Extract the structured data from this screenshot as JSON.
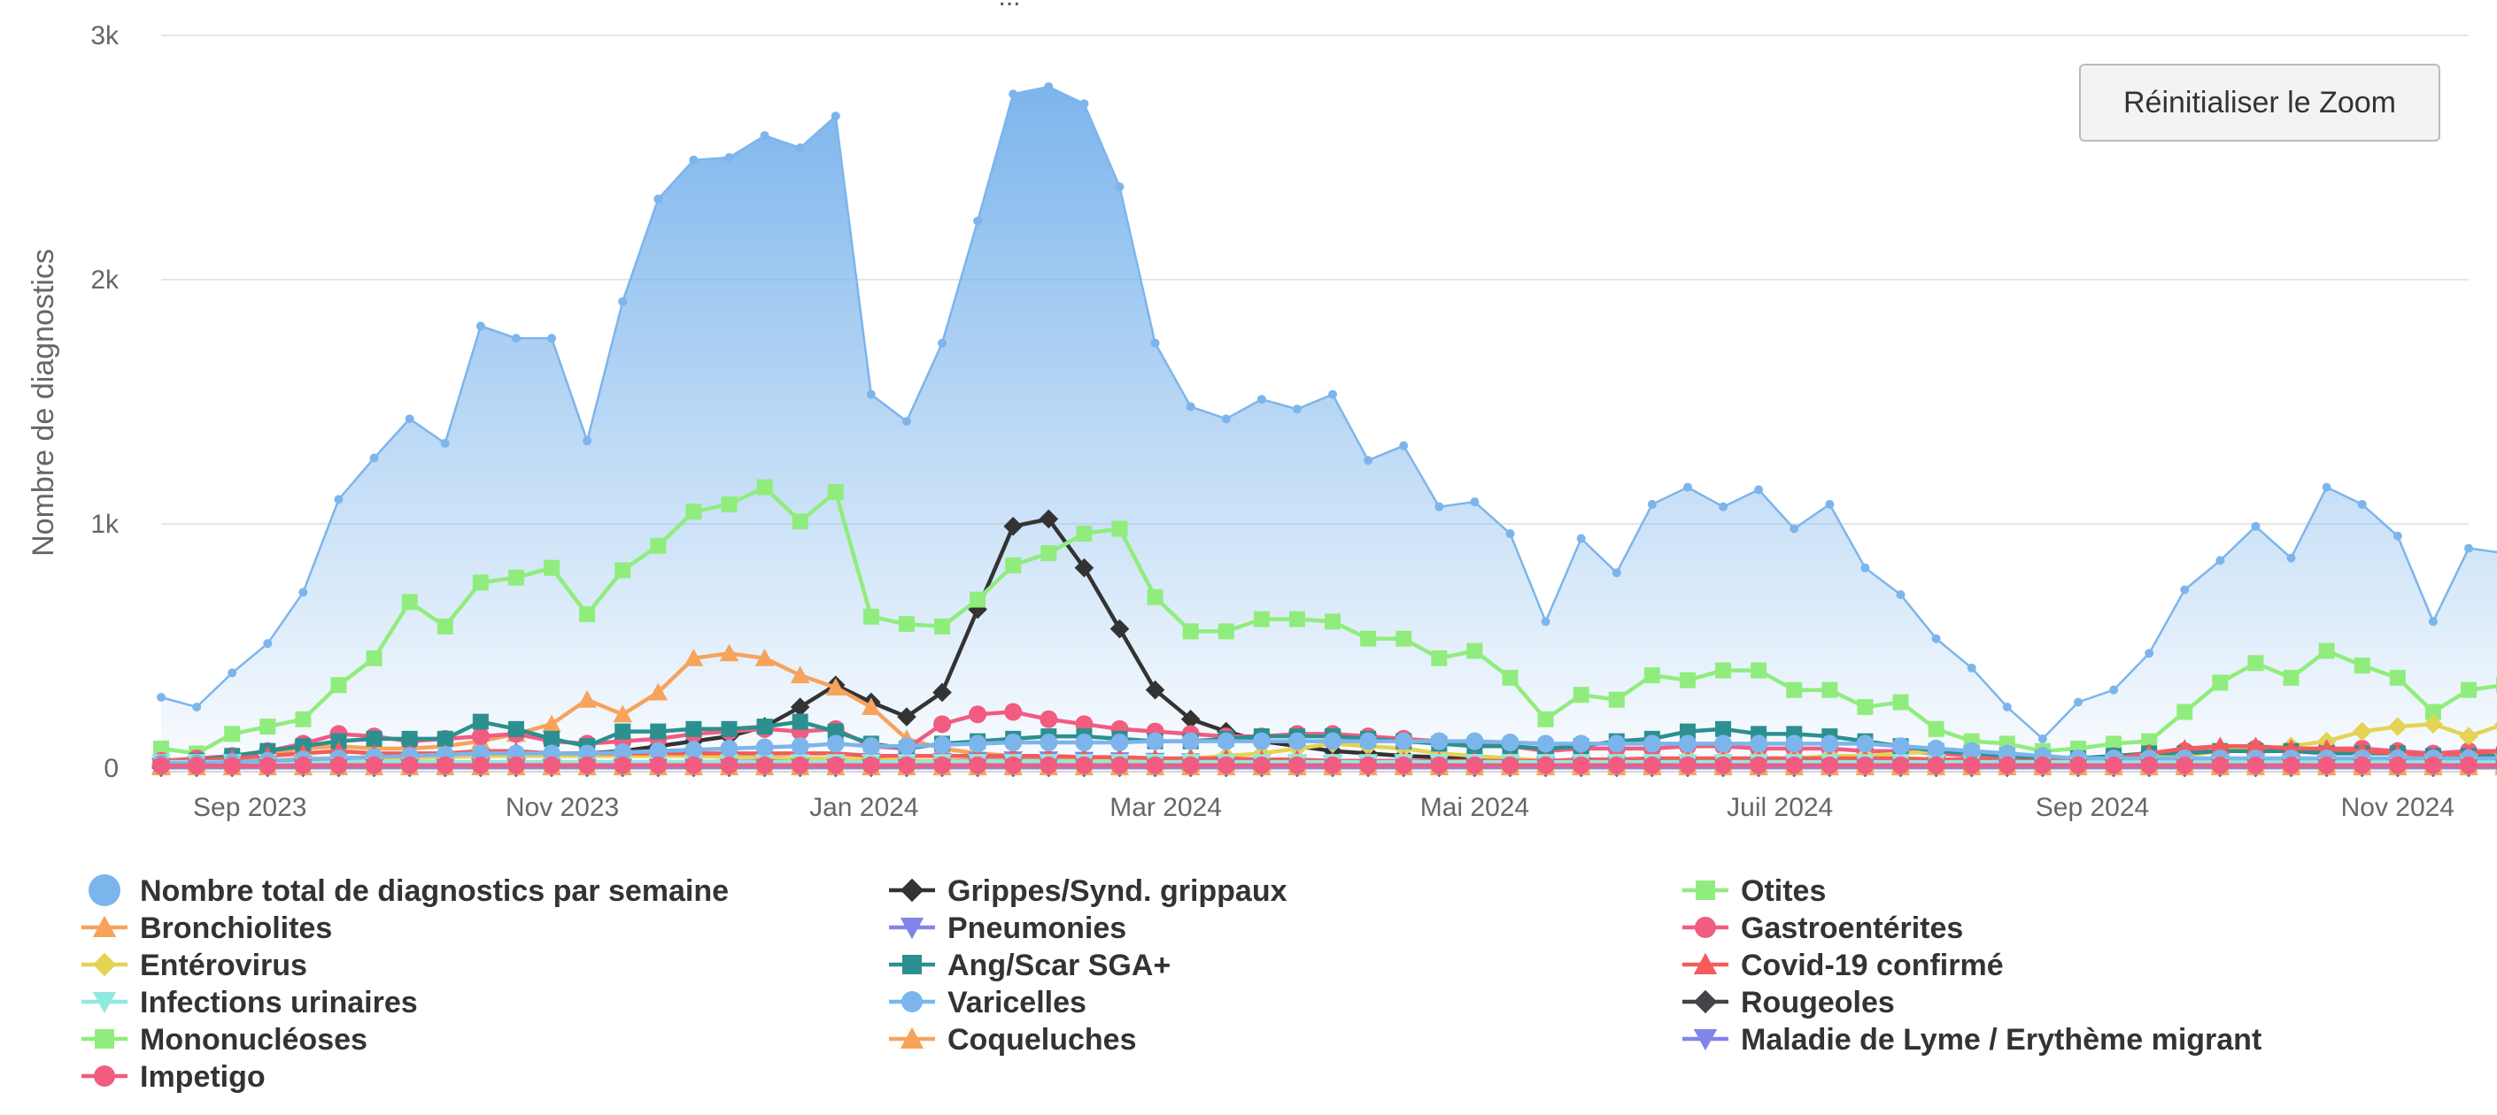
{
  "title_fragment": "...",
  "reset_zoom_label": "Réinitialiser le Zoom",
  "chart_data": {
    "type": "line",
    "ylabel": "Nombre de diagnostics",
    "ylim": [
      0,
      3000
    ],
    "yticks": [
      0,
      1000,
      2000,
      3000
    ],
    "ytick_labels": [
      "0",
      "1k",
      "2k",
      "3k"
    ],
    "x_start_week": 0,
    "x_end_week": 65,
    "xticks": [
      {
        "label": "Sep 2023",
        "week": 2.5
      },
      {
        "label": "Nov 2023",
        "week": 11.3
      },
      {
        "label": "Jan 2024",
        "week": 19.8
      },
      {
        "label": "Mar 2024",
        "week": 28.3
      },
      {
        "label": "Mai 2024",
        "week": 37.0
      },
      {
        "label": "Juil 2024",
        "week": 45.6
      },
      {
        "label": "Sep 2024",
        "week": 54.4
      },
      {
        "label": "Nov 2024",
        "week": 63.0
      }
    ],
    "series": [
      {
        "name": "Nombre total de diagnostics par semaine",
        "color": "#7cb5ec",
        "marker": "circle",
        "kind": "area",
        "values": [
          290,
          250,
          390,
          510,
          720,
          1100,
          1270,
          1430,
          1330,
          1810,
          1760,
          1760,
          1340,
          1910,
          2330,
          2490,
          2500,
          2590,
          2540,
          2670,
          1530,
          1420,
          1740,
          2240,
          2760,
          2790,
          2720,
          2380,
          1740,
          1480,
          1430,
          1510,
          1470,
          1530,
          1260,
          1320,
          1070,
          1090,
          960,
          600,
          940,
          800,
          1080,
          1150,
          1070,
          1140,
          980,
          1080,
          820,
          710,
          530,
          410,
          250,
          120,
          270,
          320,
          470,
          730,
          850,
          990,
          860,
          1150,
          1080,
          950,
          600,
          900,
          880
        ]
      },
      {
        "name": "Grippes/Synd. grippaux",
        "color": "#333333",
        "marker": "diamond",
        "values": [
          10,
          15,
          20,
          25,
          30,
          40,
          45,
          50,
          50,
          55,
          60,
          60,
          60,
          70,
          90,
          110,
          130,
          170,
          250,
          340,
          270,
          210,
          310,
          650,
          990,
          1020,
          820,
          570,
          320,
          200,
          150,
          110,
          90,
          70,
          60,
          50,
          45,
          40,
          35,
          30,
          25,
          25,
          20,
          20,
          20,
          20,
          20,
          20,
          20,
          20,
          20,
          20,
          20,
          20,
          20,
          20,
          20,
          20,
          20,
          20,
          20,
          20,
          20,
          20,
          20,
          20,
          20
        ]
      },
      {
        "name": "Otites",
        "color": "#90ed7d",
        "marker": "square",
        "values": [
          80,
          60,
          140,
          170,
          200,
          340,
          450,
          680,
          580,
          760,
          780,
          820,
          630,
          810,
          910,
          1050,
          1080,
          1150,
          1010,
          1130,
          620,
          590,
          580,
          690,
          830,
          880,
          960,
          980,
          700,
          560,
          560,
          610,
          610,
          600,
          530,
          530,
          450,
          480,
          370,
          200,
          300,
          280,
          380,
          360,
          400,
          400,
          320,
          320,
          250,
          270,
          160,
          110,
          100,
          70,
          80,
          100,
          110,
          230,
          350,
          430,
          370,
          480,
          420,
          370,
          230,
          320,
          340
        ]
      },
      {
        "name": "Bronchiolites",
        "color": "#f7a35c",
        "marker": "triangle",
        "values": [
          10,
          20,
          40,
          60,
          80,
          90,
          80,
          80,
          90,
          110,
          140,
          180,
          280,
          220,
          310,
          450,
          470,
          450,
          380,
          330,
          250,
          120,
          80,
          60,
          50,
          40,
          30,
          30,
          25,
          20,
          20,
          20,
          15,
          15,
          15,
          15,
          15,
          15,
          15,
          15,
          15,
          15,
          15,
          15,
          15,
          15,
          15,
          15,
          15,
          15,
          15,
          15,
          15,
          15,
          15,
          15,
          15,
          15,
          15,
          15,
          15,
          15,
          15,
          15,
          15,
          15,
          15
        ]
      },
      {
        "name": "Pneumonies",
        "color": "#8085e9",
        "marker": "triangle-down",
        "values": [
          10,
          10,
          10,
          10,
          12,
          14,
          15,
          15,
          16,
          18,
          20,
          20,
          20,
          22,
          24,
          25,
          26,
          28,
          30,
          32,
          30,
          28,
          30,
          34,
          36,
          36,
          34,
          32,
          30,
          28,
          26,
          24,
          22,
          20,
          20,
          18,
          18,
          18,
          16,
          15,
          15,
          15,
          15,
          15,
          15,
          15,
          15,
          15,
          15,
          15,
          15,
          15,
          14,
          12,
          15,
          15,
          16,
          18,
          20,
          22,
          22,
          24,
          24,
          22,
          20,
          22,
          22
        ]
      },
      {
        "name": "Gastroentérites",
        "color": "#f15c80",
        "marker": "circle",
        "values": [
          30,
          40,
          50,
          70,
          100,
          140,
          130,
          110,
          120,
          130,
          140,
          110,
          100,
          110,
          120,
          140,
          150,
          160,
          150,
          160,
          90,
          80,
          180,
          220,
          230,
          200,
          180,
          160,
          150,
          140,
          130,
          130,
          140,
          140,
          130,
          120,
          110,
          100,
          90,
          70,
          80,
          80,
          80,
          90,
          90,
          80,
          80,
          80,
          70,
          70,
          60,
          50,
          40,
          30,
          40,
          50,
          60,
          70,
          70,
          80,
          70,
          80,
          80,
          70,
          60,
          70,
          70
        ]
      },
      {
        "name": "Entérovirus",
        "color": "#e4d354",
        "marker": "diamond",
        "values": [
          20,
          20,
          30,
          30,
          40,
          40,
          40,
          40,
          45,
          50,
          50,
          50,
          50,
          50,
          50,
          50,
          45,
          45,
          40,
          40,
          35,
          30,
          30,
          30,
          30,
          30,
          30,
          30,
          30,
          40,
          50,
          60,
          80,
          100,
          90,
          80,
          60,
          50,
          40,
          30,
          30,
          30,
          30,
          40,
          40,
          40,
          40,
          50,
          50,
          60,
          70,
          60,
          50,
          40,
          30,
          30,
          40,
          50,
          70,
          80,
          90,
          110,
          150,
          170,
          180,
          130,
          180
        ]
      },
      {
        "name": "Ang/Scar SGA+",
        "color": "#2b908f",
        "marker": "square",
        "values": [
          20,
          30,
          50,
          70,
          90,
          110,
          120,
          120,
          120,
          190,
          160,
          120,
          90,
          150,
          150,
          160,
          160,
          170,
          190,
          150,
          100,
          80,
          100,
          110,
          120,
          130,
          130,
          120,
          110,
          110,
          120,
          130,
          130,
          130,
          120,
          110,
          100,
          90,
          90,
          80,
          90,
          110,
          120,
          150,
          160,
          140,
          140,
          130,
          110,
          90,
          70,
          60,
          50,
          40,
          40,
          50,
          60,
          60,
          70,
          70,
          70,
          60,
          60,
          60,
          50,
          50,
          50
        ]
      },
      {
        "name": "Covid-19 confirmé",
        "color": "#f45b5b",
        "marker": "triangle",
        "values": [
          30,
          30,
          40,
          50,
          60,
          70,
          60,
          60,
          60,
          70,
          70,
          60,
          60,
          60,
          60,
          60,
          60,
          60,
          60,
          60,
          50,
          50,
          50,
          50,
          50,
          50,
          45,
          45,
          40,
          40,
          40,
          35,
          35,
          30,
          30,
          30,
          30,
          30,
          30,
          30,
          35,
          35,
          40,
          40,
          40,
          40,
          40,
          40,
          40,
          40,
          35,
          35,
          30,
          30,
          30,
          40,
          60,
          80,
          90,
          90,
          80,
          80,
          70,
          60,
          50,
          60,
          70
        ]
      },
      {
        "name": "Infections urinaires",
        "color": "#91e8e1",
        "marker": "triangle-down",
        "values": [
          25,
          25,
          25,
          25,
          25,
          25,
          25,
          25,
          25,
          25,
          25,
          25,
          25,
          25,
          25,
          25,
          25,
          25,
          25,
          25,
          25,
          25,
          25,
          25,
          25,
          25,
          25,
          25,
          25,
          25,
          25,
          25,
          25,
          25,
          25,
          25,
          25,
          25,
          25,
          25,
          25,
          25,
          25,
          25,
          25,
          25,
          25,
          25,
          25,
          25,
          25,
          25,
          25,
          25,
          25,
          25,
          25,
          25,
          25,
          25,
          25,
          25,
          25,
          25,
          25,
          25,
          25
        ]
      },
      {
        "name": "Varicelles",
        "color": "#7cb5ec",
        "marker": "circle",
        "values": [
          20,
          20,
          25,
          30,
          35,
          40,
          45,
          50,
          55,
          60,
          60,
          60,
          60,
          65,
          70,
          75,
          80,
          85,
          90,
          100,
          90,
          90,
          95,
          100,
          105,
          105,
          105,
          105,
          110,
          110,
          110,
          110,
          110,
          110,
          110,
          110,
          110,
          110,
          105,
          100,
          100,
          100,
          100,
          100,
          100,
          100,
          100,
          100,
          100,
          90,
          80,
          70,
          60,
          50,
          40,
          40,
          40,
          40,
          40,
          40,
          40,
          40,
          40,
          40,
          40,
          40,
          40
        ]
      },
      {
        "name": "Rougeoles",
        "color": "#434348",
        "marker": "diamond",
        "values": [
          2,
          2,
          2,
          2,
          2,
          2,
          2,
          2,
          2,
          2,
          2,
          2,
          2,
          2,
          2,
          2,
          2,
          2,
          2,
          2,
          2,
          2,
          2,
          2,
          2,
          2,
          2,
          2,
          2,
          2,
          2,
          2,
          2,
          2,
          2,
          2,
          2,
          2,
          2,
          2,
          2,
          2,
          2,
          2,
          2,
          2,
          2,
          2,
          2,
          2,
          2,
          2,
          2,
          2,
          2,
          2,
          2,
          2,
          2,
          2,
          2,
          2,
          2,
          2,
          2,
          2,
          2
        ]
      },
      {
        "name": "Mononucléoses",
        "color": "#90ed7d",
        "marker": "square",
        "values": [
          10,
          10,
          10,
          10,
          10,
          10,
          10,
          10,
          10,
          10,
          10,
          10,
          10,
          10,
          10,
          10,
          10,
          10,
          10,
          10,
          10,
          10,
          10,
          10,
          10,
          10,
          10,
          10,
          10,
          10,
          10,
          10,
          10,
          10,
          10,
          10,
          10,
          10,
          10,
          10,
          10,
          10,
          10,
          10,
          10,
          10,
          10,
          10,
          10,
          10,
          10,
          10,
          10,
          10,
          10,
          10,
          10,
          10,
          10,
          10,
          10,
          10,
          10,
          10,
          10,
          10,
          10
        ]
      },
      {
        "name": "Coqueluches",
        "color": "#f7a35c",
        "marker": "triangle",
        "values": [
          3,
          3,
          3,
          3,
          3,
          3,
          3,
          3,
          3,
          3,
          3,
          3,
          3,
          3,
          3,
          3,
          3,
          3,
          3,
          3,
          3,
          3,
          3,
          3,
          3,
          3,
          3,
          3,
          3,
          3,
          3,
          3,
          3,
          3,
          3,
          3,
          3,
          3,
          3,
          3,
          3,
          3,
          3,
          3,
          3,
          3,
          3,
          3,
          3,
          3,
          3,
          3,
          3,
          3,
          3,
          3,
          3,
          3,
          3,
          3,
          3,
          3,
          3,
          3,
          3,
          3,
          3
        ]
      },
      {
        "name": "Maladie de Lyme / Erythème migrant",
        "color": "#8085e9",
        "marker": "triangle-down",
        "values": [
          5,
          5,
          5,
          5,
          5,
          5,
          5,
          5,
          5,
          5,
          5,
          5,
          5,
          5,
          5,
          5,
          5,
          5,
          5,
          5,
          5,
          5,
          5,
          5,
          5,
          5,
          5,
          5,
          5,
          5,
          5,
          5,
          5,
          5,
          5,
          5,
          5,
          5,
          5,
          5,
          5,
          5,
          5,
          5,
          5,
          5,
          5,
          5,
          5,
          5,
          5,
          5,
          5,
          5,
          5,
          5,
          5,
          5,
          5,
          5,
          5,
          5,
          5,
          5,
          5,
          5,
          5
        ]
      },
      {
        "name": "Impetigo",
        "color": "#f15c80",
        "marker": "circle",
        "values": [
          10,
          10,
          10,
          10,
          12,
          12,
          12,
          12,
          12,
          12,
          12,
          12,
          12,
          12,
          12,
          12,
          12,
          12,
          12,
          12,
          12,
          12,
          12,
          12,
          12,
          12,
          12,
          12,
          12,
          12,
          12,
          12,
          12,
          12,
          12,
          12,
          12,
          12,
          12,
          12,
          12,
          12,
          12,
          12,
          12,
          12,
          12,
          12,
          12,
          12,
          12,
          12,
          12,
          12,
          12,
          12,
          12,
          12,
          12,
          12,
          12,
          12,
          12,
          12,
          12,
          12,
          12
        ]
      }
    ]
  }
}
